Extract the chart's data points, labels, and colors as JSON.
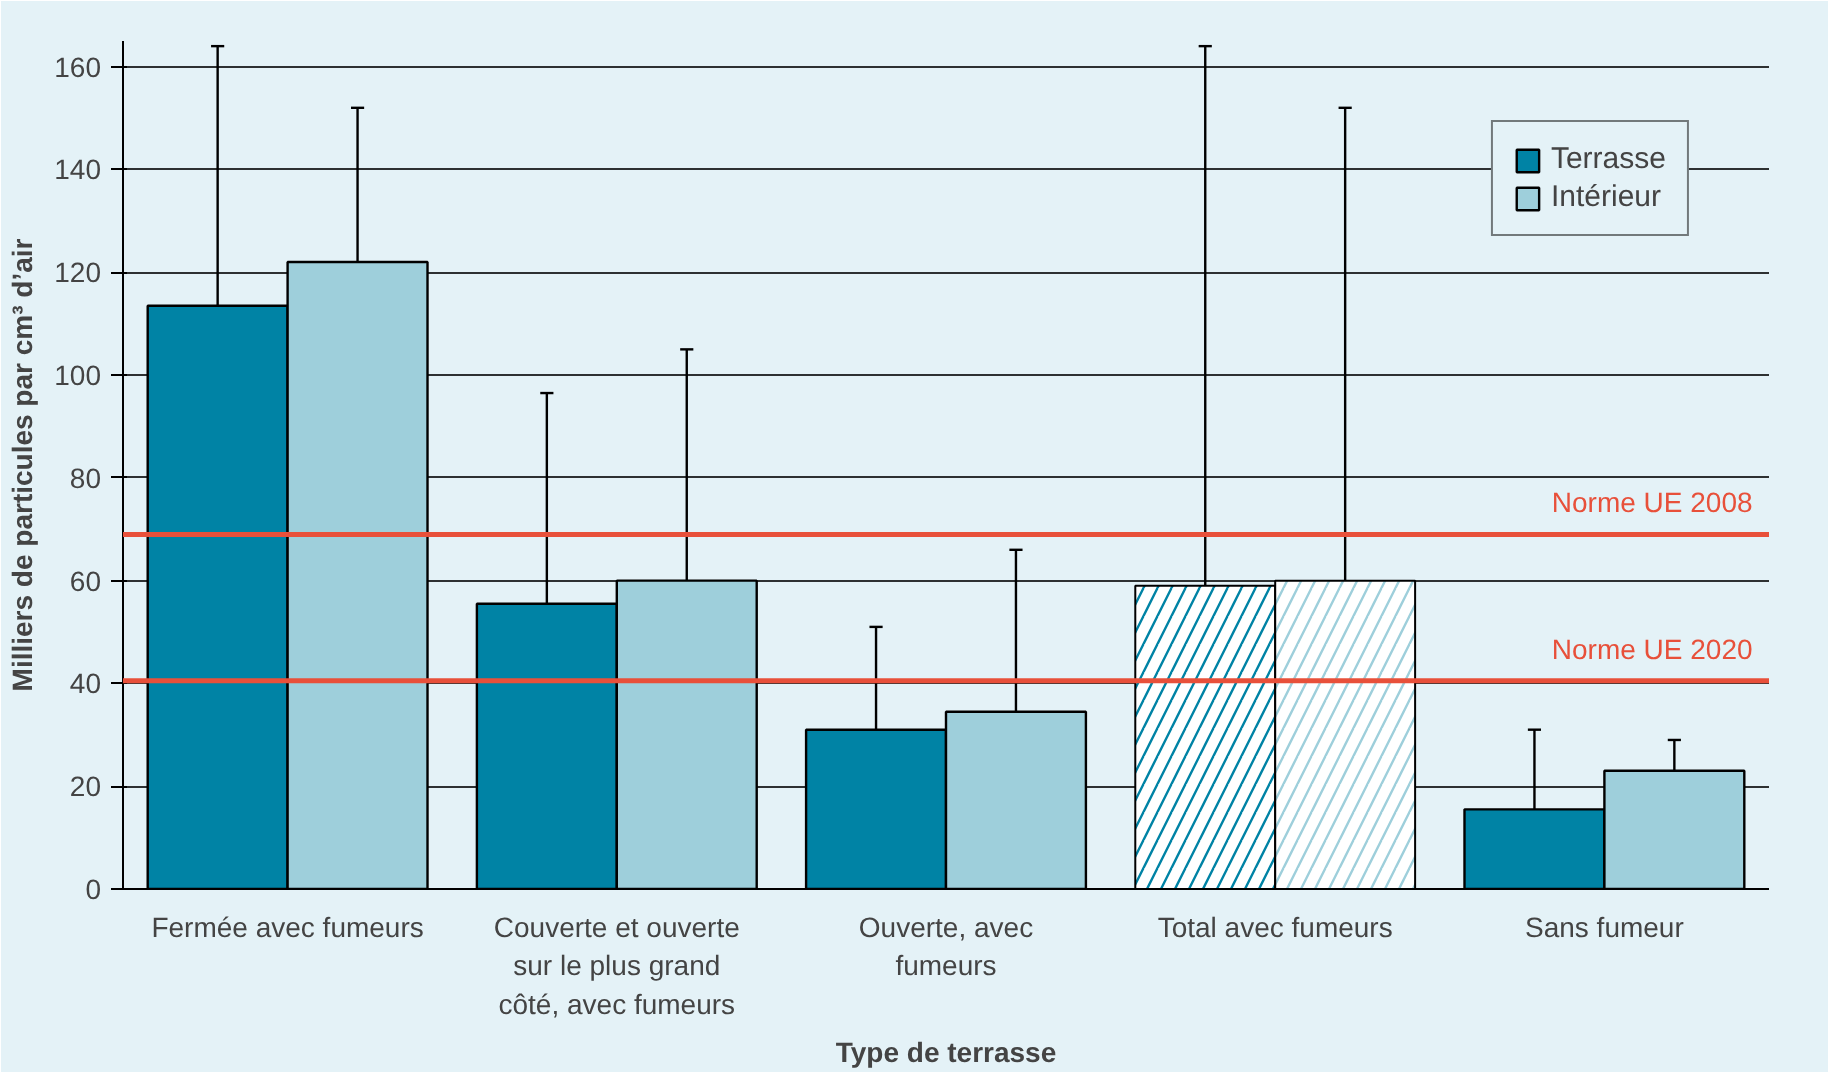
{
  "chart_data": {
    "type": "bar",
    "xlabel": "Type de terrasse",
    "ylabel": "Milliers de particules par cm³ d’air",
    "categories": [
      "Fermée avec fumeurs",
      "Couverte et ouverte sur le plus grand côté, avec fumeurs",
      "Ouverte, avec fumeurs",
      "Total avec fumeurs",
      "Sans fumeur"
    ],
    "series": [
      {
        "name": "Terrasse",
        "color": "#0083a5",
        "colors": [
          "#0083a5",
          "#0083a5",
          "#0083a5",
          "#ffffff",
          "#0083a5"
        ],
        "values": [
          113.5,
          55.5,
          31,
          59,
          15.5
        ],
        "errors": [
          [
            113.5,
            164
          ],
          [
            55.5,
            96.5
          ],
          [
            31,
            51
          ],
          [
            59,
            164
          ],
          [
            15.5,
            31
          ]
        ]
      },
      {
        "name": "Intérieur",
        "color": "#9ecfdb",
        "colors": [
          "#9ecfdb",
          "#9ecfdb",
          "#9ecfdb",
          "#ffffff",
          "#9ecfdb"
        ],
        "values": [
          122,
          60,
          34.5,
          60,
          23
        ],
        "errors": [
          [
            122,
            152
          ],
          [
            60,
            105
          ],
          [
            34.5,
            66
          ],
          [
            60,
            152
          ],
          [
            23,
            29
          ]
        ]
      }
    ],
    "ylim": [
      0,
      165
    ],
    "yticks": [
      0,
      20,
      40,
      60,
      80,
      100,
      120,
      140,
      160
    ],
    "grid": "y",
    "legend": "top right",
    "ref_lines": [
      {
        "axis": "y",
        "value": 69,
        "label": "Norme UE 2008",
        "color": "#e8503a"
      },
      {
        "axis": "y",
        "value": 40.5,
        "label": "Norme UE 2020",
        "color": "#e8503a"
      }
    ]
  }
}
